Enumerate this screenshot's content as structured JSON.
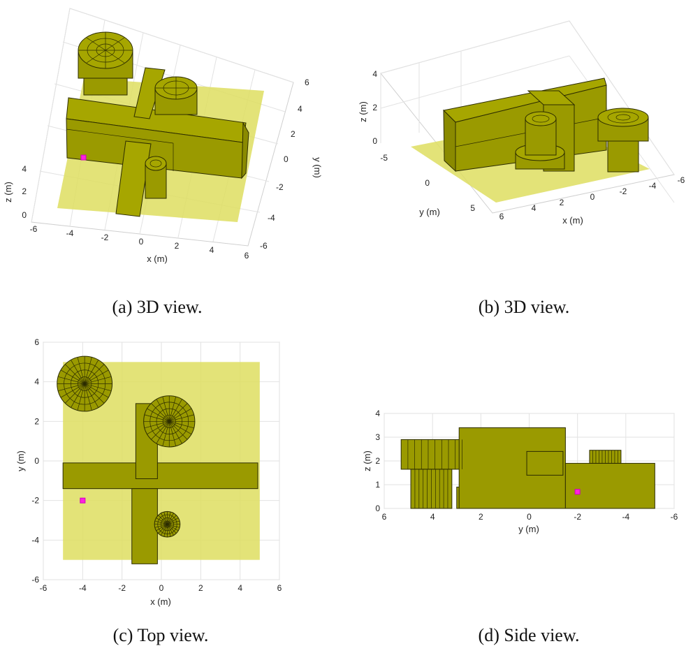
{
  "chart_data": [
    {
      "id": "a",
      "type": "3d-scene",
      "caption": "(a) 3D view.",
      "xlabel": "x (m)",
      "ylabel": "y (m)",
      "zlabel": "z (m)",
      "xticks": [
        "-6",
        "-4",
        "-2",
        "0",
        "2",
        "4",
        "6"
      ],
      "yticks": [
        "-6",
        "-4",
        "-2",
        "0",
        "2",
        "4",
        "6"
      ],
      "zticks": [
        "0",
        "2",
        "4"
      ],
      "xlim": [
        -6,
        6
      ],
      "ylim": [
        -6,
        6
      ],
      "zlim": [
        0,
        4
      ],
      "marker": {
        "x": -4,
        "y": -2,
        "z": 0.7
      }
    },
    {
      "id": "b",
      "type": "3d-scene",
      "caption": "(b) 3D view.",
      "xlabel": "x (m)",
      "ylabel": "y (m)",
      "zlabel": "z (m)",
      "xticks": [
        "6",
        "4",
        "2",
        "0",
        "-2",
        "-4",
        "-6"
      ],
      "yticks": [
        "-5",
        "0",
        "5"
      ],
      "zticks": [
        "0",
        "2",
        "4"
      ],
      "xlim": [
        -6,
        6
      ],
      "ylim": [
        -6,
        6
      ],
      "zlim": [
        0,
        4
      ]
    },
    {
      "id": "c",
      "type": "top-view",
      "caption": "(c) Top view.",
      "xlabel": "x (m)",
      "ylabel": "y (m)",
      "xticks": [
        "-6",
        "-4",
        "-2",
        "0",
        "2",
        "4",
        "6"
      ],
      "yticks": [
        "-6",
        "-4",
        "-2",
        "0",
        "2",
        "4",
        "6"
      ],
      "xlim": [
        -6,
        6
      ],
      "ylim": [
        -6,
        6
      ],
      "floor": {
        "x0": -5,
        "x1": 5,
        "y0": -5,
        "y1": 5
      },
      "rects": [
        {
          "x0": -5,
          "x1": 4.9,
          "y0": -1.4,
          "y1": -0.1
        },
        {
          "x0": -1.5,
          "x1": -0.2,
          "y0": -5.2,
          "y1": -1.4
        },
        {
          "x0": -1.3,
          "x1": -0.2,
          "y0": -0.9,
          "y1": 2.9
        }
      ],
      "circles": [
        {
          "cx": -3.9,
          "cy": 3.9,
          "r": 1.4
        },
        {
          "cx": 0.4,
          "cy": 2.0,
          "r": 1.3
        },
        {
          "cx": 0.3,
          "cy": -3.2,
          "r": 0.65
        }
      ],
      "marker": {
        "x": -4,
        "y": -2
      }
    },
    {
      "id": "d",
      "type": "side-view",
      "caption": "(d) Side view.",
      "xlabel": "y (m)",
      "ylabel": "z (m)",
      "xticks": [
        "6",
        "4",
        "2",
        "0",
        "-2",
        "-4",
        "-6"
      ],
      "yticks": [
        "0",
        "1",
        "2",
        "3",
        "4"
      ],
      "xlim": [
        6,
        -6
      ],
      "ylim": [
        0,
        4
      ],
      "rects": [
        {
          "y0": 5.3,
          "y1": 2.5,
          "z0": 1.65,
          "z1": 2.9
        },
        {
          "y0": 4.9,
          "y1": 3.2,
          "z0": 0,
          "z1": 1.65
        },
        {
          "y0": 3.0,
          "y1": 2.7,
          "z0": 0,
          "z1": 0.9
        },
        {
          "y0": 2.9,
          "y1": -1.5,
          "z0": 0,
          "z1": 3.4
        },
        {
          "y0": 0.1,
          "y1": -1.4,
          "z0": 1.4,
          "z1": 2.4
        },
        {
          "y0": -1.5,
          "y1": -5.2,
          "z0": 0,
          "z1": 1.9
        },
        {
          "y0": -2.5,
          "y1": -3.8,
          "z0": 1.9,
          "z1": 2.45
        }
      ],
      "marker": {
        "y": -2,
        "z": 0.7
      }
    }
  ]
}
